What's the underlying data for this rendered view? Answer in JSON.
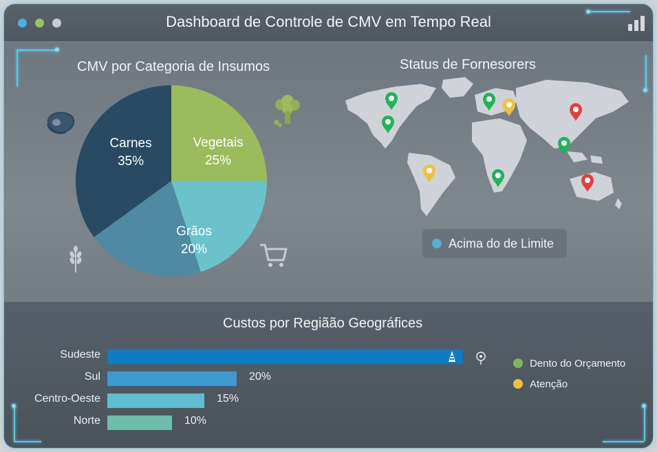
{
  "window": {
    "title": "Dashboard de Controle de CMV em Tempo Real",
    "traffic_lights": [
      "#4fb0e0",
      "#9ac060",
      "#c7ccd2"
    ]
  },
  "pie_panel": {
    "title": "CMV por Categoria de Insumos",
    "icons": [
      "meat-icon",
      "broccoli-icon",
      "wheat-icon",
      "shopping-cart-icon"
    ]
  },
  "map_panel": {
    "title": "Status de Fornesorers",
    "legend_label": "Acima do de Limite",
    "legend_color": "#5aaed0",
    "pin_colors": {
      "green": "#22b25a",
      "yellow": "#f0c040",
      "red": "#e04040"
    }
  },
  "bar_panel": {
    "title": "Custos por Regiãão Geográfices",
    "legend": [
      {
        "label": "Dento do Orçamento",
        "color": "#7fb55a"
      },
      {
        "label": "Atenção",
        "color": "#f0c040"
      }
    ]
  },
  "chart_data": [
    {
      "type": "pie",
      "title": "CMV por Categoria de Insumos",
      "slices": [
        {
          "label": "Carnes",
          "value": 35,
          "display": "35%",
          "color": "#284a63"
        },
        {
          "label": "Vegetais",
          "value": 25,
          "display": "25%",
          "color": "#9bbb5c"
        },
        {
          "label": "Grãos",
          "value": 20,
          "display": "20%",
          "color": "#6cc2cc"
        },
        {
          "label": "",
          "value": 20,
          "display": "",
          "color": "#4f8aa3"
        }
      ]
    },
    {
      "type": "bar",
      "orientation": "horizontal",
      "title": "Custos por Regiãão Geográfices",
      "categories": [
        "Sudeste",
        "Sul",
        "Centro-Oeste",
        "Norte"
      ],
      "values": [
        55,
        20,
        15,
        10
      ],
      "value_labels": [
        "",
        "20%",
        "15%",
        "10%"
      ],
      "colors": [
        "#0f7bc0",
        "#3f9ad0",
        "#5fbfd0",
        "#6dbfac"
      ],
      "xlim": [
        0,
        55
      ]
    }
  ]
}
